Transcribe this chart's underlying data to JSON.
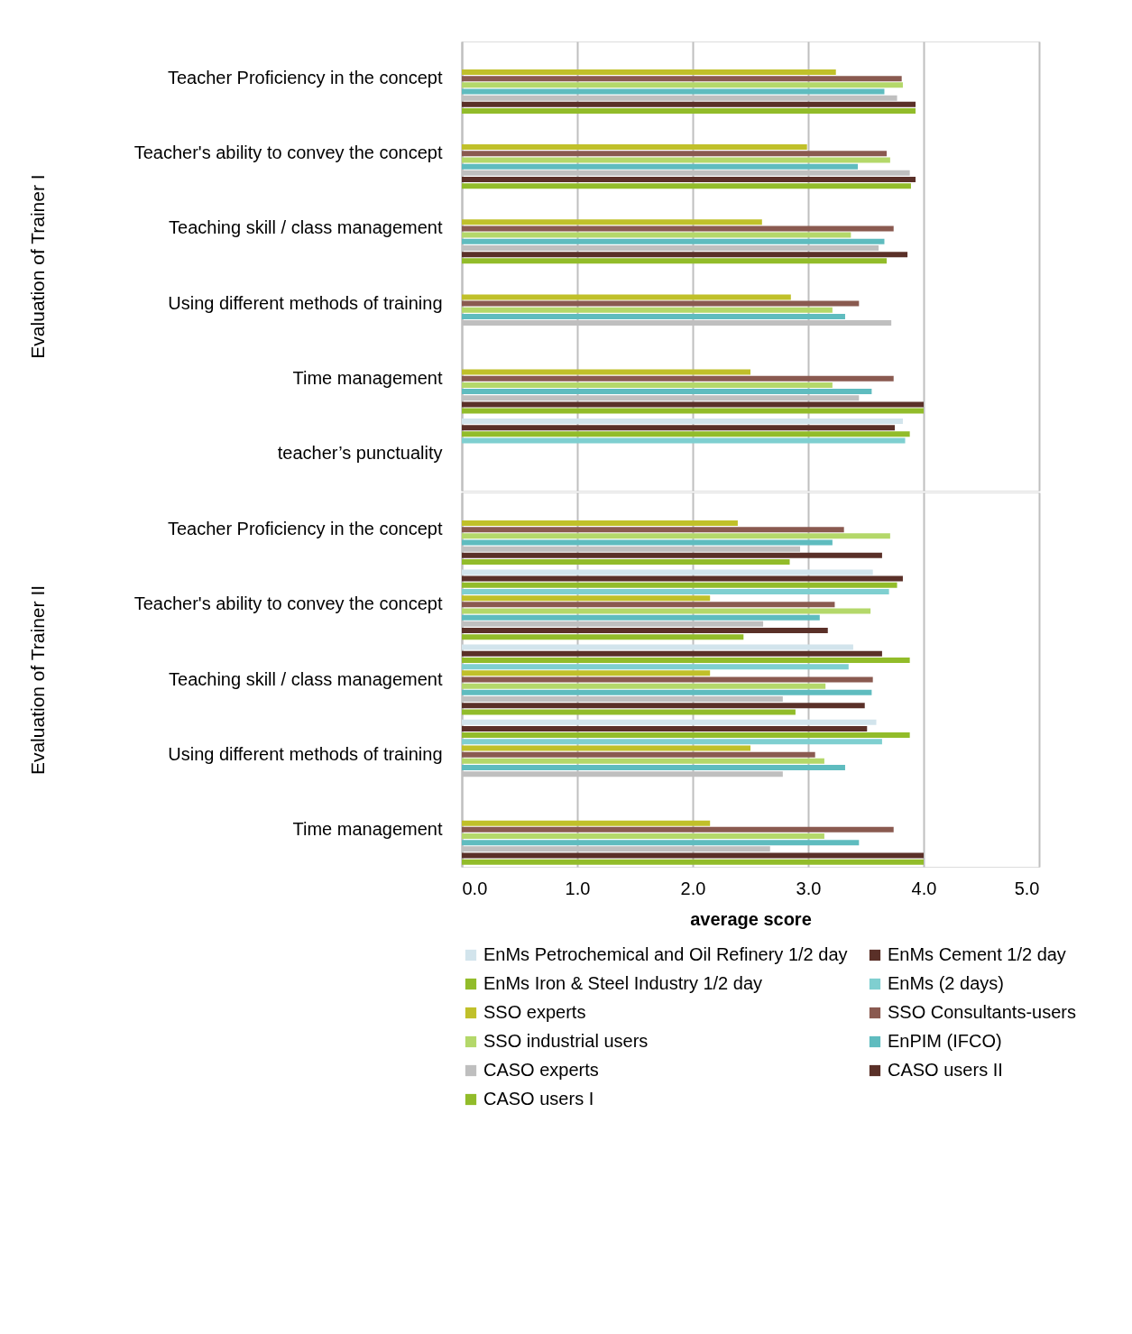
{
  "chart_data": [
    {
      "type": "bar",
      "orientation": "horizontal",
      "ylabel": "Evaluation of Trainer I",
      "categories": [
        "Teacher Proficiency in the concept",
        "Teacher's ability to convey the concept",
        "Teaching skill / class management",
        "Using different methods of training",
        "Time management",
        "teacher’s punctuality"
      ],
      "series": [
        {
          "color": "#d2e4ec",
          "values": [
            null,
            null,
            null,
            null,
            null,
            3.82
          ]
        },
        {
          "color": "#5a3028",
          "values": [
            null,
            null,
            null,
            null,
            null,
            3.75
          ]
        },
        {
          "color": "#92bc2a",
          "values": [
            null,
            null,
            null,
            null,
            null,
            3.88
          ]
        },
        {
          "color": "#7fcfd0",
          "values": [
            null,
            null,
            null,
            null,
            null,
            3.84
          ]
        },
        {
          "color": "#c0c02a",
          "values": [
            3.24,
            2.99,
            2.6,
            2.85,
            2.5,
            null
          ]
        },
        {
          "color": "#8a5a50",
          "values": [
            3.81,
            3.68,
            3.74,
            3.44,
            3.74,
            null
          ]
        },
        {
          "color": "#b4d86a",
          "values": [
            3.82,
            3.71,
            3.37,
            3.21,
            3.21,
            null
          ]
        },
        {
          "color": "#5fbcbf",
          "values": [
            3.66,
            3.43,
            3.66,
            3.32,
            3.55,
            null
          ]
        },
        {
          "color": "#bfbfbf",
          "values": [
            3.77,
            3.88,
            3.61,
            3.72,
            3.44,
            null
          ]
        },
        {
          "color": "#5a3028",
          "values": [
            3.93,
            3.93,
            3.86,
            null,
            4.0,
            null
          ]
        },
        {
          "color": "#92bc2a",
          "values": [
            3.93,
            3.89,
            3.68,
            null,
            4.0,
            null
          ]
        }
      ],
      "xlim": [
        0,
        5
      ],
      "xticks": [
        0,
        1,
        2,
        3,
        4,
        5
      ],
      "grid": "x",
      "legend": false,
      "tick_labels": "y"
    },
    {
      "type": "bar",
      "orientation": "horizontal",
      "ylabel": "Evaluation of Trainer II",
      "xlabel": "average score",
      "categories": [
        "Teacher Proficiency in the concept",
        "Teacher's ability to convey the concept",
        "Teaching skill / class management",
        "Using different methods of training",
        "Time management"
      ],
      "series": [
        {
          "name": "EnMs Petrochemical and Oil Refinery 1/2 day",
          "color": "#d2e4ec",
          "values": [
            null,
            3.56,
            3.39,
            3.59,
            null
          ]
        },
        {
          "name": "EnMs Cement 1/2 day",
          "color": "#5a3028",
          "values": [
            null,
            3.82,
            3.64,
            3.51,
            null
          ]
        },
        {
          "name": "EnMs Iron & Steel Industry 1/2 day",
          "color": "#92bc2a",
          "values": [
            null,
            3.77,
            3.88,
            3.88,
            null
          ]
        },
        {
          "name": "EnMs (2 days)",
          "color": "#7fcfd0",
          "values": [
            null,
            3.7,
            3.35,
            3.64,
            null
          ]
        },
        {
          "name": "SSO experts",
          "color": "#c0c02a",
          "values": [
            2.39,
            2.15,
            2.15,
            2.5,
            2.15
          ]
        },
        {
          "name": "SSO Consultants-users",
          "color": "#8a5a50",
          "values": [
            3.31,
            3.23,
            3.56,
            3.06,
            3.74
          ]
        },
        {
          "name": "SSO industrial users",
          "color": "#b4d86a",
          "values": [
            3.71,
            3.54,
            3.15,
            3.14,
            3.14
          ]
        },
        {
          "name": "EnPIM (IFCO)",
          "color": "#5fbcbf",
          "values": [
            3.21,
            3.1,
            3.55,
            3.32,
            3.44
          ]
        },
        {
          "name": "CASO experts",
          "color": "#bfbfbf",
          "values": [
            2.93,
            2.61,
            2.78,
            2.78,
            2.67
          ]
        },
        {
          "name": "CASO users II",
          "color": "#5a3028",
          "values": [
            3.64,
            3.17,
            3.49,
            null,
            4.0
          ]
        },
        {
          "name": "CASO users I",
          "color": "#92bc2a",
          "values": [
            2.84,
            2.44,
            2.89,
            null,
            4.0
          ]
        }
      ],
      "xlim": [
        0,
        5
      ],
      "xticks": [
        {
          "value": 0,
          "label": "0.0"
        },
        {
          "value": 1,
          "label": "1.0"
        },
        {
          "value": 2,
          "label": "2.0"
        },
        {
          "value": 3,
          "label": "3.0"
        },
        {
          "value": 4,
          "label": "4.0"
        },
        {
          "value": 5,
          "label": "5.0"
        }
      ],
      "grid": "x",
      "legend": "bottom"
    }
  ]
}
